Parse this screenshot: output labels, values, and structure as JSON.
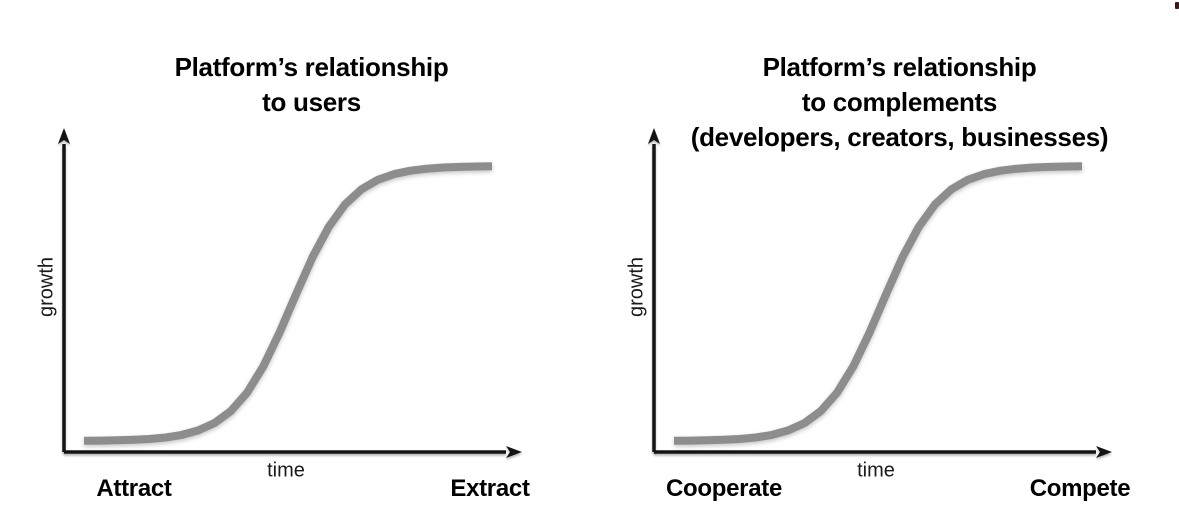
{
  "palette": {
    "background": "#ffffff",
    "axis": "#141414",
    "curve": "#8d8d8d",
    "text": "#000000",
    "corner_speck": "#401515"
  },
  "charts": [
    {
      "title_lines": [
        "Platform’s relationship",
        "to users"
      ],
      "y_axis_label": "growth",
      "x_axis_label": "time",
      "start_label": "Attract",
      "end_label": "Extract"
    },
    {
      "title_lines": [
        "Platform’s relationship",
        "to complements",
        "(developers, creators, businesses)"
      ],
      "y_axis_label": "growth",
      "x_axis_label": "time",
      "start_label": "Cooperate",
      "end_label": "Compete"
    }
  ],
  "chart_data": [
    {
      "type": "line",
      "title": "Platform’s relationship to users",
      "xlabel": "time",
      "ylabel": "growth",
      "x_endpoint_annotations": [
        "Attract",
        "Extract"
      ],
      "axis_arrows": true,
      "grid": false,
      "legend": false,
      "xlim": [
        0,
        1
      ],
      "ylim": [
        0,
        1
      ],
      "series": [
        {
          "name": "platform growth S-curve",
          "x": [
            0,
            0.04,
            0.08,
            0.12,
            0.16,
            0.2,
            0.24,
            0.28,
            0.32,
            0.36,
            0.4,
            0.44,
            0.48,
            0.52,
            0.56,
            0.6,
            0.64,
            0.68,
            0.72,
            0.76,
            0.8,
            0.84,
            0.88,
            0.92,
            0.96,
            1
          ],
          "y": [
            0.0008,
            0.0014,
            0.0024,
            0.0042,
            0.0074,
            0.0129,
            0.0223,
            0.0384,
            0.0654,
            0.1091,
            0.1765,
            0.2729,
            0.3965,
            0.5349,
            0.6682,
            0.779,
            0.8606,
            0.9153,
            0.9498,
            0.9707,
            0.983,
            0.9902,
            0.9944,
            0.9968,
            0.9982,
            0.999
          ]
        }
      ]
    },
    {
      "type": "line",
      "title": "Platform’s relationship to complements (developers, creators, businesses)",
      "xlabel": "time",
      "ylabel": "growth",
      "x_endpoint_annotations": [
        "Cooperate",
        "Compete"
      ],
      "axis_arrows": true,
      "grid": false,
      "legend": false,
      "xlim": [
        0,
        1
      ],
      "ylim": [
        0,
        1
      ],
      "series": [
        {
          "name": "platform growth S-curve",
          "x": [
            0,
            0.04,
            0.08,
            0.12,
            0.16,
            0.2,
            0.24,
            0.28,
            0.32,
            0.36,
            0.4,
            0.44,
            0.48,
            0.52,
            0.56,
            0.6,
            0.64,
            0.68,
            0.72,
            0.76,
            0.8,
            0.84,
            0.88,
            0.92,
            0.96,
            1
          ],
          "y": [
            0.0008,
            0.0014,
            0.0024,
            0.0042,
            0.0074,
            0.0129,
            0.0223,
            0.0384,
            0.0654,
            0.1091,
            0.1765,
            0.2729,
            0.3965,
            0.5349,
            0.6682,
            0.779,
            0.8606,
            0.9153,
            0.9498,
            0.9707,
            0.983,
            0.9902,
            0.9944,
            0.9968,
            0.9982,
            0.999
          ]
        }
      ]
    }
  ]
}
